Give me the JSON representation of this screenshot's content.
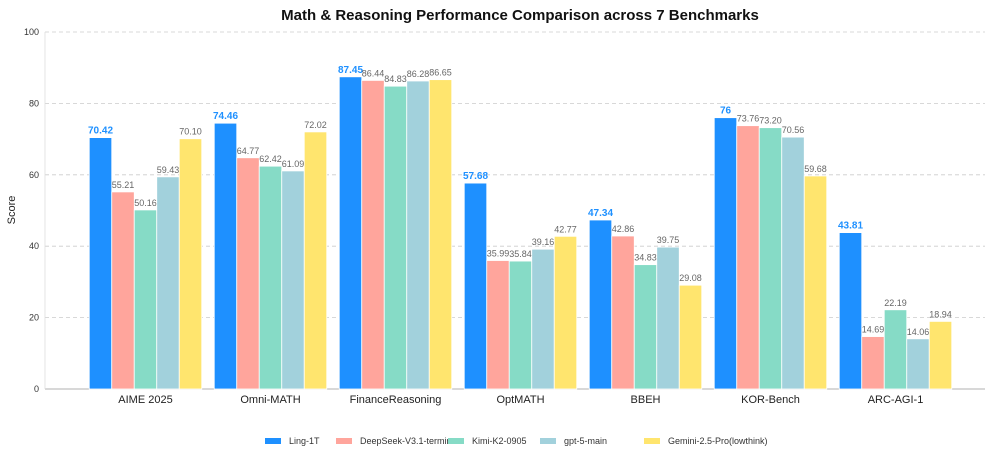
{
  "chart_data": {
    "type": "bar",
    "title": "Math & Reasoning Performance Comparison across 7 Benchmarks",
    "xlabel": "",
    "ylabel": "Score",
    "ylim": [
      0,
      100
    ],
    "yticks": [
      0,
      20,
      40,
      60,
      80,
      100
    ],
    "grid": true,
    "legend_placement": "bottom",
    "categories": [
      "AIME 2025",
      "Omni-MATH",
      "FinanceReasoning",
      "OptMATH",
      "BBEH",
      "KOR-Bench",
      "ARC-AGI-1"
    ],
    "series": [
      {
        "name": "Ling-1T",
        "color": "#1e90ff",
        "values": [
          70.42,
          74.46,
          87.45,
          57.68,
          47.34,
          76,
          43.81
        ],
        "labels": [
          "70.42",
          "74.46",
          "87.45",
          "57.68",
          "47.34",
          "76",
          "43.81"
        ]
      },
      {
        "name": "DeepSeek-V3.1-terminus",
        "color": "#ffa59c",
        "values": [
          55.21,
          64.77,
          86.44,
          35.99,
          42.86,
          73.76,
          14.69
        ],
        "labels": [
          "55.21",
          "64.77",
          "86.44",
          "35.99",
          "42.86",
          "73.76",
          "14.69"
        ]
      },
      {
        "name": "Kimi-K2-0905",
        "color": "#86dbc6",
        "values": [
          50.16,
          62.42,
          84.83,
          35.84,
          34.83,
          73.2,
          22.19
        ],
        "labels": [
          "50.16",
          "62.42",
          "84.83",
          "35.84",
          "34.83",
          "73.20",
          "22.19"
        ]
      },
      {
        "name": "gpt-5-main",
        "color": "#a2d1dc",
        "values": [
          59.43,
          61.09,
          86.28,
          39.16,
          39.75,
          70.56,
          14.06
        ],
        "labels": [
          "59.43",
          "61.09",
          "86.28",
          "39.16",
          "39.75",
          "70.56",
          "14.06"
        ]
      },
      {
        "name": "Gemini-2.5-Pro(lowthink)",
        "color": "#ffe56e",
        "values": [
          70.1,
          72.02,
          86.65,
          42.77,
          29.08,
          59.68,
          18.94
        ],
        "labels": [
          "70.10",
          "72.02",
          "86.65",
          "42.77",
          "29.08",
          "59.68",
          "18.94"
        ]
      }
    ]
  }
}
